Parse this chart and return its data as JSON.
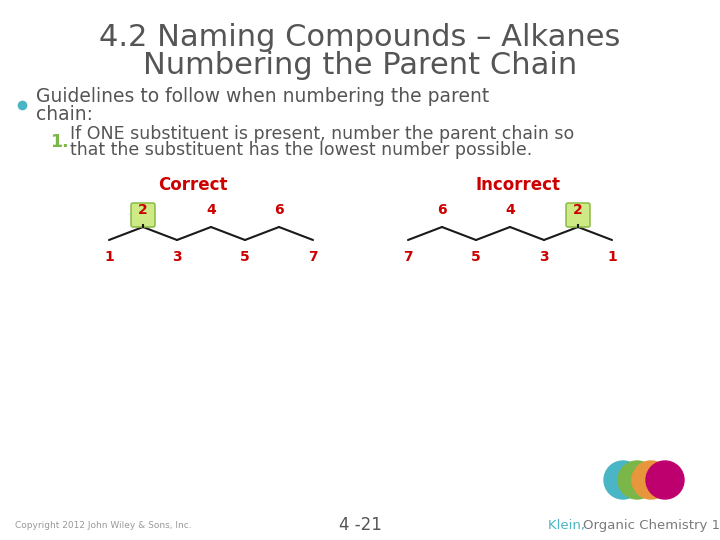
{
  "title_line1": "4.2 Naming Compounds – Alkanes",
  "title_line2": "Numbering the Parent Chain",
  "title_color": "#555555",
  "title_fontsize": 22,
  "bullet_color": "#4ab5c4",
  "bullet_text_line1": "Guidelines to follow when numbering the parent",
  "bullet_text_line2": "chain:",
  "bullet_fontsize": 13.5,
  "number_color": "#7ab648",
  "body_text_line1": "If ONE substituent is present, number the parent chain so",
  "body_text_line2": "that the substituent has the lowest number possible.",
  "body_fontsize": 12.5,
  "label_correct": "Correct",
  "label_incorrect": "Incorrect",
  "label_color": "#cc0000",
  "label_fontsize": 12,
  "number_label_color": "#cc0000",
  "number_label_fontsize": 10,
  "correct_top_labels": [
    "2",
    "4",
    "6"
  ],
  "correct_bottom_labels": [
    "1",
    "3",
    "5",
    "7"
  ],
  "incorrect_top_labels": [
    "6",
    "4",
    "2"
  ],
  "incorrect_bottom_labels": [
    "7",
    "5",
    "3",
    "1"
  ],
  "box_color_face": "#c8e87a",
  "box_color_edge": "#8ab840",
  "chain_color": "#1a1a1a",
  "copyright_text": "Copyright 2012 John Wiley & Sons, Inc.",
  "page_number": "4 -21",
  "footer_color_klein": "#4ab5c4",
  "footer_color_rest": "#7a7a7a",
  "bg_color": "#ffffff",
  "circle_colors": [
    "#4ab5c4",
    "#7ab648",
    "#e8963c",
    "#be006e"
  ]
}
